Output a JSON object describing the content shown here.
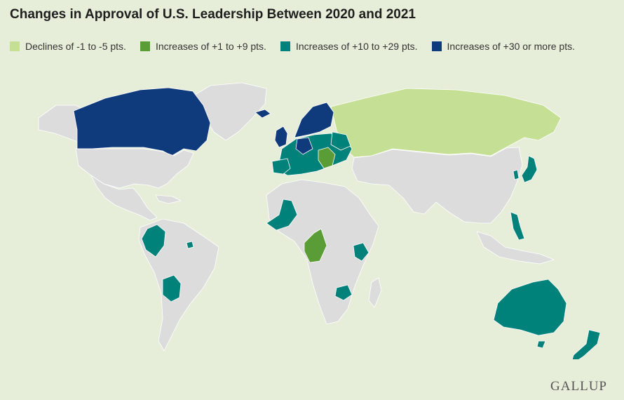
{
  "title": "Changes in Approval of U.S. Leadership Between 2020 and 2021",
  "legend": [
    {
      "label": "Declines of -1 to -5 pts.",
      "color": "#c5df95"
    },
    {
      "label": "Increases of +1 to +9 pts.",
      "color": "#5a9c35"
    },
    {
      "label": "Increases of +10 to +29 pts.",
      "color": "#00827a"
    },
    {
      "label": "Increases of +30 or more pts.",
      "color": "#0f3b7d"
    }
  ],
  "colors": {
    "background": "#e6eed9",
    "no_data": "#dcdcdc",
    "border": "#ffffff"
  },
  "logo": "GALLUP"
}
